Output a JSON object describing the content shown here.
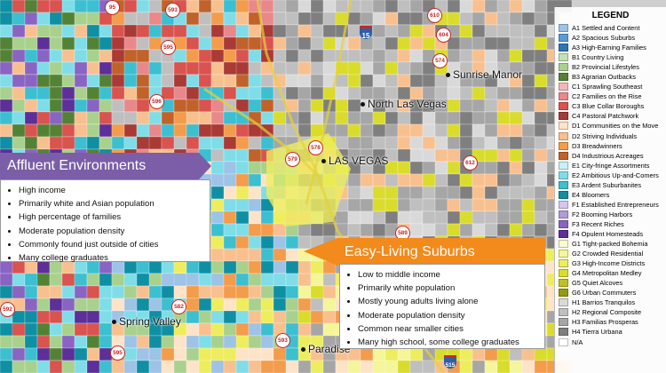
{
  "legend": {
    "title": "LEGEND",
    "items": [
      {
        "label": "A1 Settled and Content",
        "color": "#9dc3e6"
      },
      {
        "label": "A2 Spacious Suburbs",
        "color": "#5b9bd5"
      },
      {
        "label": "A3 High-Earning Families",
        "color": "#2e75b6"
      },
      {
        "label": "B1 Country Living",
        "color": "#c5e0b4"
      },
      {
        "label": "B2 Provincial Lifestyles",
        "color": "#a9d18e"
      },
      {
        "label": "B3 Agrarian Outbacks",
        "color": "#548235"
      },
      {
        "label": "C1 Sprawling Southeast",
        "color": "#f4b6b6"
      },
      {
        "label": "C2 Families on the Rise",
        "color": "#e8888a"
      },
      {
        "label": "C3 Blue Collar Boroughs",
        "color": "#d9534f"
      },
      {
        "label": "C4 Pastoral Patchwork",
        "color": "#a93a35"
      },
      {
        "label": "D1 Communities on the Move",
        "color": "#fde3c8"
      },
      {
        "label": "D2 Striving Individuals",
        "color": "#f9c08f"
      },
      {
        "label": "D3 Breadwinners",
        "color": "#f39c4c"
      },
      {
        "label": "D4 Industrious Acreages",
        "color": "#c0622a"
      },
      {
        "label": "E1 City-fringe Assortments",
        "color": "#c9f1f5"
      },
      {
        "label": "E2 Ambitious Up-and-Comers",
        "color": "#7fdde8"
      },
      {
        "label": "E3 Ardent Suburbanites",
        "color": "#3cbfd1"
      },
      {
        "label": "E4 Bloomers",
        "color": "#0f8fa3"
      },
      {
        "label": "F1 Established Entrepreneurs",
        "color": "#d7c6ec"
      },
      {
        "label": "F2 Booming Harbors",
        "color": "#b19ad8"
      },
      {
        "label": "F3 Recent Riches",
        "color": "#8a64c2"
      },
      {
        "label": "F4 Opulent Homesteads",
        "color": "#5d2f99"
      },
      {
        "label": "G1 Tight-packed Bohemia",
        "color": "#fbfbd0"
      },
      {
        "label": "G2 Crowded Residential",
        "color": "#f5f59a"
      },
      {
        "label": "G3 High-Income Districts",
        "color": "#eded5e"
      },
      {
        "label": "G4 Metropolitan Medley",
        "color": "#d9dc2b"
      },
      {
        "label": "G5 Quiet Alcoves",
        "color": "#bec21f"
      },
      {
        "label": "G6 Urban Commuters",
        "color": "#959a12"
      },
      {
        "label": "H1 Barrios Tranquilos",
        "color": "#d9d9d9"
      },
      {
        "label": "H2 Regional Composite",
        "color": "#bfbfbf"
      },
      {
        "label": "H3 Familias Prosperas",
        "color": "#a6a6a6"
      },
      {
        "label": "H4 Tierra Urbana",
        "color": "#7f7f7f"
      },
      {
        "label": "N/A",
        "color": "#ffffff"
      }
    ]
  },
  "places": [
    {
      "name": "Sunrise Manor"
    },
    {
      "name": "North Las Vegas"
    },
    {
      "name": "LAS VEGAS"
    },
    {
      "name": "Spring Valley"
    },
    {
      "name": "Paradise"
    }
  ],
  "route_shields": [
    "95",
    "593",
    "595",
    "596",
    "578",
    "579",
    "582",
    "589",
    "592",
    "593",
    "595",
    "604",
    "574",
    "610",
    "612",
    "15",
    "515"
  ],
  "callouts": {
    "affluent": {
      "title": "Affluent Environments",
      "color": "#7b5ea7",
      "items": [
        "High income",
        "Primarily white and Asian population",
        "High percentage of families",
        "Moderate population density",
        "Commonly found just outside of cities",
        "Many college graduates"
      ]
    },
    "easy_living": {
      "title": "Easy-Living Suburbs",
      "color": "#f28a1c",
      "items": [
        "Low to middle income",
        "Primarily white population",
        "Mostly young adults living alone",
        "Moderate population density",
        "Common near smaller cities",
        "Many high school, some college graduates"
      ]
    }
  }
}
